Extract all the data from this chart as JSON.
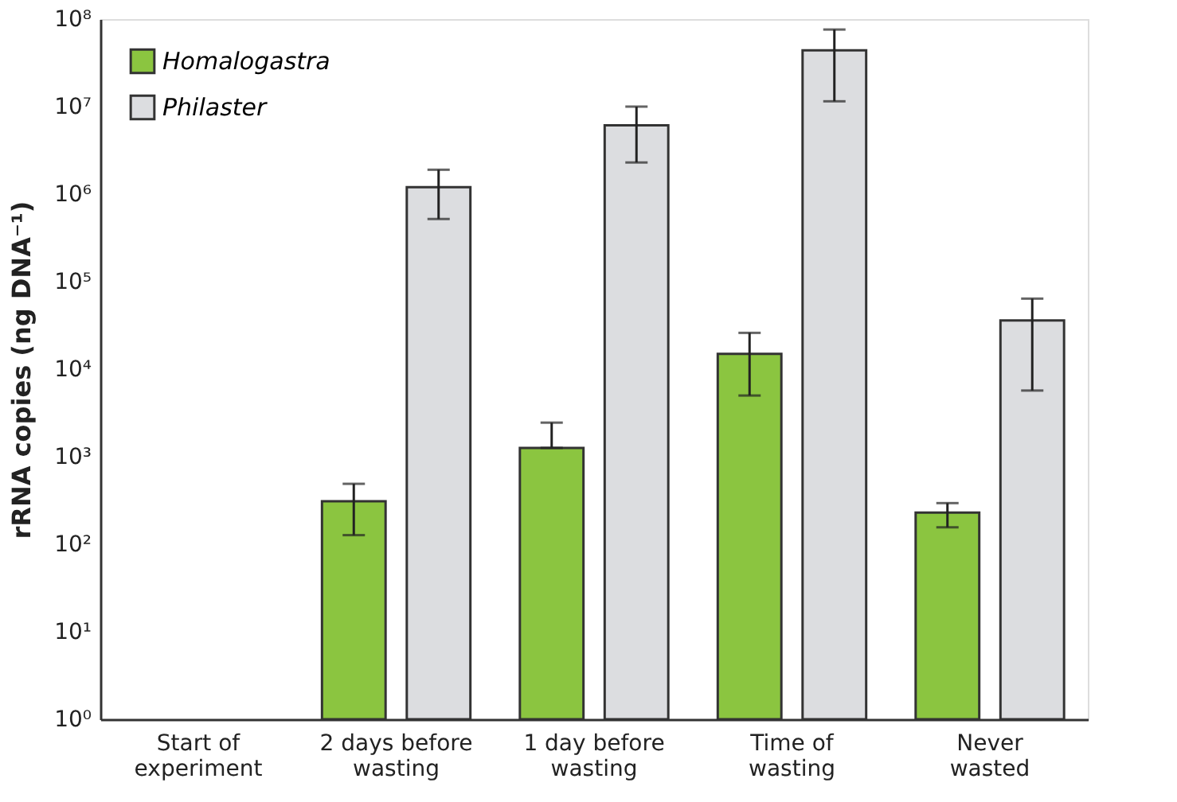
{
  "chart_data": {
    "type": "bar",
    "ylabel": "rRNA copies (ng DNA⁻¹)",
    "categories": [
      "Start of\nexperiment",
      "2 days before\nwasting",
      "1 day before\nwasting",
      "Time of\nwasting",
      "Never\nwasted"
    ],
    "series": [
      {
        "name": "Homalogastra",
        "color": "#8bc540",
        "values": [
          null,
          310,
          1260,
          15000,
          230
        ],
        "errors": [
          null,
          [
            127,
            490
          ],
          [
            1260,
            2450
          ],
          [
            5000,
            26000
          ],
          [
            156,
            295
          ]
        ]
      },
      {
        "name": "Philaster",
        "color": "#dcdde0",
        "values": [
          null,
          1200000,
          6100000,
          44000000,
          36000
        ],
        "errors": [
          null,
          [
            520000,
            1900000
          ],
          [
            2300000,
            10000000
          ],
          [
            11500000,
            76000000
          ],
          [
            5700,
            64000
          ]
        ]
      }
    ],
    "log": true,
    "ylim": [
      1,
      100000000
    ],
    "yticks": [
      {
        "value": 1,
        "label": "10⁰"
      },
      {
        "value": 10,
        "label": "10¹"
      },
      {
        "value": 100,
        "label": "10²"
      },
      {
        "value": 1000,
        "label": "10³"
      },
      {
        "value": 10000,
        "label": "10⁴"
      },
      {
        "value": 100000,
        "label": "10⁵"
      },
      {
        "value": 1000000,
        "label": "10⁶"
      },
      {
        "value": 10000000,
        "label": "10⁷"
      },
      {
        "value": 100000000,
        "label": "10⁸"
      }
    ],
    "legend": "top left",
    "grid": false
  }
}
